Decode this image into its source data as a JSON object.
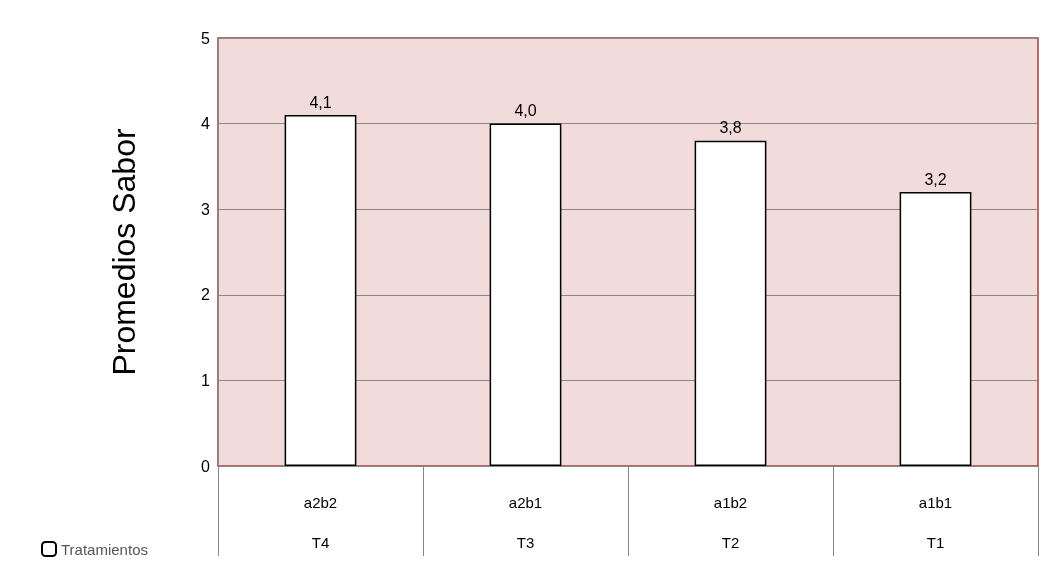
{
  "chart_data": {
    "type": "bar",
    "ylabel": "Promedios Sabor",
    "categories": [
      "a2b2\nT4",
      "a2b1\nT3",
      "a1b2\nT2",
      "a1b1\nT1"
    ],
    "series": [
      {
        "name": "Tratamientos",
        "color": "#ffffff",
        "values": [
          4.1,
          4.0,
          3.8,
          3.2
        ],
        "value_labels": [
          "4,1",
          "4,0",
          "3,8",
          "3,2"
        ]
      }
    ],
    "ylim": [
      0,
      5
    ],
    "yticks": [
      0,
      1,
      2,
      3,
      4,
      5
    ],
    "grid": "y",
    "legend": "bottom left"
  }
}
